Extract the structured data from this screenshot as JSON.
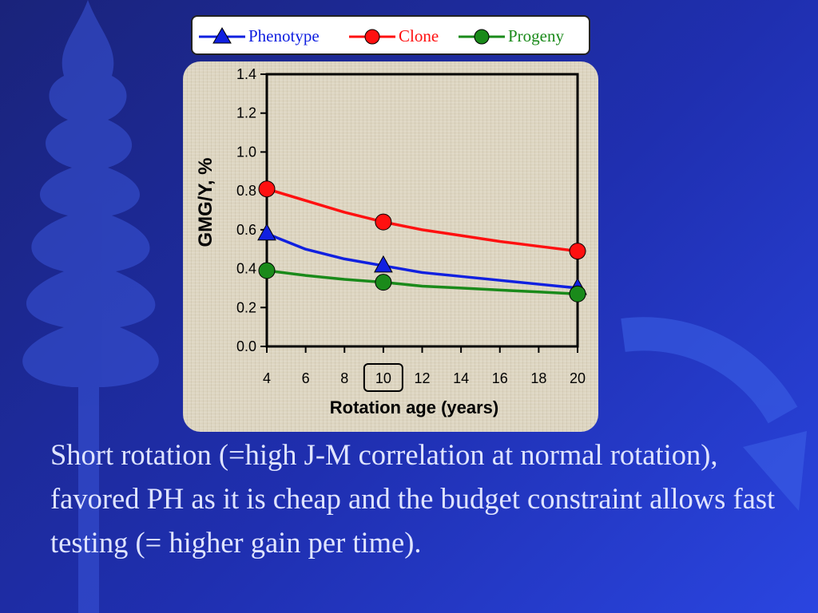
{
  "chart_data": {
    "type": "line",
    "xlabel": "Rotation age (years)",
    "ylabel": "GMG/Y, %",
    "xlim": [
      4,
      20
    ],
    "ylim": [
      0,
      1.4
    ],
    "x_ticks": [
      "4",
      "6",
      "8",
      "10",
      "12",
      "14",
      "16",
      "18",
      "20"
    ],
    "y_ticks": [
      "0.0",
      "0.2",
      "0.4",
      "0.6",
      "0.8",
      "1.0",
      "1.2",
      "1.4"
    ],
    "highlighted_tick": "10",
    "legend_position": "top",
    "grid": false,
    "series": [
      {
        "name": "Phenotype",
        "color": "#1020e0",
        "marker": "triangle",
        "x": [
          4,
          6,
          8,
          10,
          12,
          14,
          16,
          18,
          20
        ],
        "y": [
          0.58,
          0.5,
          0.45,
          0.415,
          0.38,
          0.36,
          0.34,
          0.32,
          0.3
        ],
        "markers_at": [
          4,
          10,
          20
        ]
      },
      {
        "name": "Clone",
        "color": "#ff1010",
        "marker": "circle",
        "x": [
          4,
          6,
          8,
          10,
          12,
          14,
          16,
          18,
          20
        ],
        "y": [
          0.81,
          0.75,
          0.69,
          0.64,
          0.6,
          0.57,
          0.54,
          0.515,
          0.49
        ],
        "markers_at": [
          4,
          10,
          20
        ]
      },
      {
        "name": "Progeny",
        "color": "#1a8a1a",
        "marker": "circle",
        "x": [
          4,
          6,
          8,
          10,
          12,
          14,
          16,
          18,
          20
        ],
        "y": [
          0.39,
          0.365,
          0.345,
          0.33,
          0.31,
          0.3,
          0.29,
          0.28,
          0.27
        ],
        "markers_at": [
          4,
          10,
          20
        ]
      }
    ]
  },
  "caption": "Short rotation (=high J-M correlation at normal rotation), favored PH as it is cheap and the budget constraint allows fast testing (= higher gain per time).",
  "background_decoration": [
    "tree-silhouette",
    "circular-arrow"
  ]
}
